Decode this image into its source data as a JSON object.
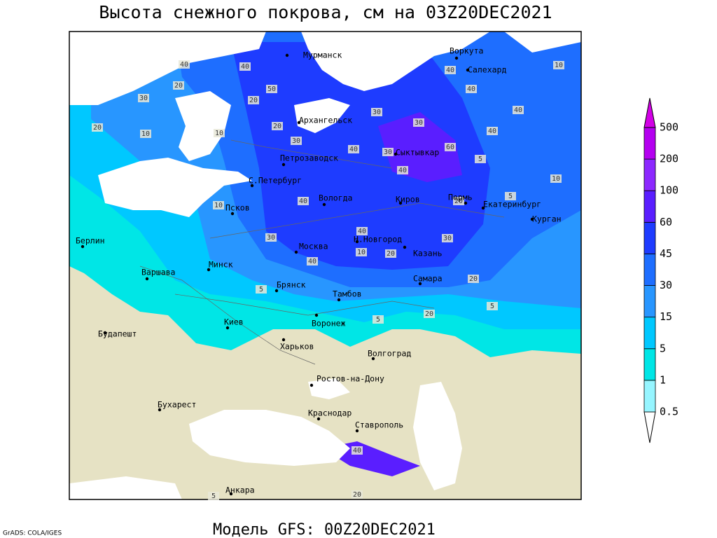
{
  "title": "Высота снежного покрова, см на 03Z20DEC2021",
  "footer": "Модель GFS: 00Z20DEC2021",
  "credit": "GrADS: COLA/IGES",
  "cities": [
    "Мурманск",
    "Воркута",
    "Салехард",
    "Архангельск",
    "Сыктывкар",
    "Петрозаводск",
    "С.Петербург",
    "Вологда",
    "Киров",
    "Пермь",
    "Екатеринбург",
    "Курган",
    "Псков",
    "Берлин",
    "Н.Новгород",
    "Москва",
    "Казань",
    "Варшава",
    "Минск",
    "Самара",
    "Брянск",
    "Тамбов",
    "Киев",
    "Воронеж",
    "Будапешт",
    "Харьков",
    "Волгоград",
    "Ростов-на-Дону",
    "Бухарест",
    "Краснодар",
    "Ставрополь",
    "Анкара"
  ],
  "contour_labels": [
    40,
    40,
    50,
    20,
    20,
    30,
    20,
    10,
    10,
    40,
    30,
    30,
    40,
    40,
    40,
    40,
    60,
    40,
    30,
    20,
    30,
    40,
    30,
    40,
    40,
    20,
    5,
    5,
    10,
    10,
    10,
    5,
    10,
    20,
    30,
    20,
    5,
    20,
    5,
    40,
    20,
    5
  ],
  "colorbar": {
    "levels": [
      0.5,
      1,
      5,
      15,
      30,
      45,
      60,
      100,
      200,
      500
    ],
    "colors": [
      "#ffffff",
      "#96f5ff",
      "#00e6e6",
      "#00c8ff",
      "#2896ff",
      "#1e6eff",
      "#1e3cff",
      "#5a1eff",
      "#8c28ff",
      "#b400f0",
      "#d200e6"
    ]
  }
}
